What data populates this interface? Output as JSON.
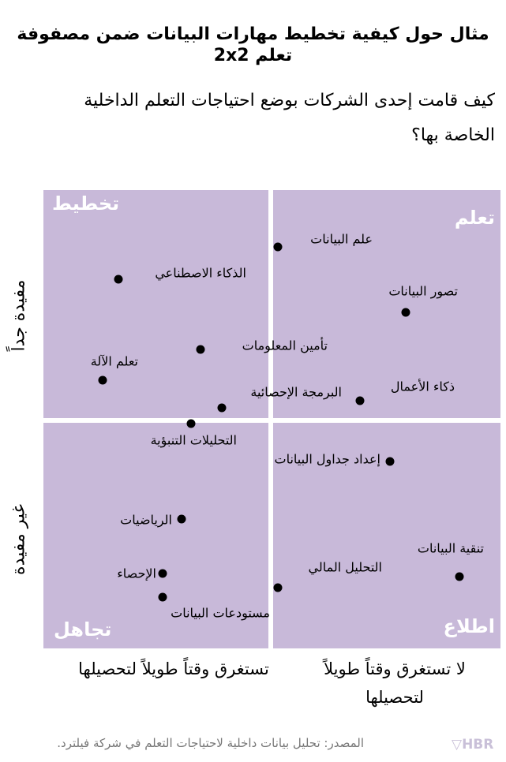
{
  "title": "مثال حول كيفية تخطيط مهارات البيانات ضمن مصفوفة تعلم 2x2",
  "subtitle": "كيف قامت إحدى الشركات بوضع احتياجات التعلم الداخلية الخاصة بها؟",
  "quadrants": {
    "top_left": "تخطيط",
    "top_right": "تعلم",
    "bottom_left": "تجاهل",
    "bottom_right": "اطلاع"
  },
  "y_axis": {
    "top": "مفيدة جداً",
    "bottom": "غير مفيدة"
  },
  "x_axis": {
    "left": "تستغرق وقتاً طويلاً لتحصيلها",
    "right": "لا تستغرق وقتاً طويلاً لتحصيلها"
  },
  "skills": [
    "علم البيانات",
    "الذكاء الاصطناعي",
    "تصور البيانات",
    "تأمين المعلومات",
    "تعلم الآلة",
    "ذكاء الأعمال",
    "البرمجة الإحصائية",
    "التحليلات التنبؤية",
    "إعداد جداول البيانات",
    "الرياضيات",
    "تنقية البيانات",
    "التحليل المالي",
    "الإحصاء",
    "مستودعات البيانات"
  ],
  "source": "المصدر: تحليل بيانات داخلية لاحتياجات التعلم في شركة فيلترد.",
  "brand": "HBR",
  "colors": {
    "quadrant": "#c8b9d9",
    "label": "#ffffff"
  }
}
